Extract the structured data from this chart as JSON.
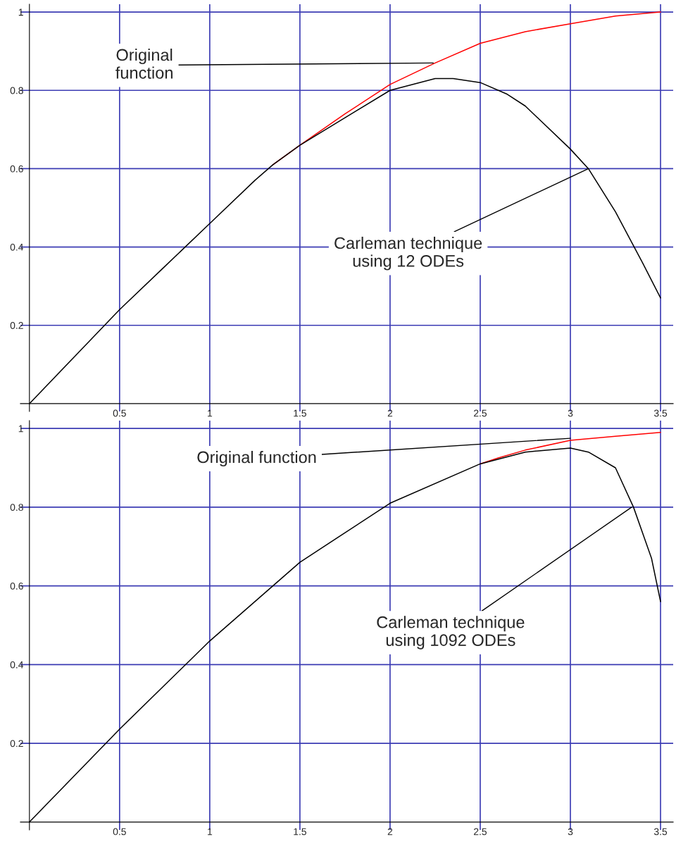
{
  "chart_data": [
    {
      "type": "line",
      "xlim": [
        -0.05,
        3.57
      ],
      "ylim": [
        -0.02,
        1.02
      ],
      "xticks": [
        0.5,
        1,
        1.5,
        2,
        2.5,
        3,
        3.5
      ],
      "yticks": [
        0.2,
        0.4,
        0.6,
        0.8,
        1
      ],
      "grid": true,
      "series": [
        {
          "color": "#ff0000",
          "x": [
            1.35,
            1.5,
            1.75,
            2,
            2.25,
            2.5,
            2.75,
            3,
            3.25,
            3.5
          ],
          "values": [
            0.61,
            0.66,
            0.74,
            0.815,
            0.87,
            0.92,
            0.95,
            0.97,
            0.99,
            1.0
          ]
        },
        {
          "color": "#000000",
          "x": [
            0,
            0.25,
            0.5,
            0.75,
            1,
            1.25,
            1.35,
            1.5,
            1.75,
            2,
            2.25,
            2.35,
            2.5,
            2.65,
            2.75,
            3,
            3.1,
            3.25,
            3.4,
            3.5
          ],
          "values": [
            0,
            0.12,
            0.24,
            0.35,
            0.46,
            0.57,
            0.61,
            0.66,
            0.73,
            0.8,
            0.83,
            0.83,
            0.82,
            0.79,
            0.76,
            0.65,
            0.6,
            0.49,
            0.36,
            0.27
          ]
        }
      ],
      "annotations": [
        {
          "text": "Original\nfunction",
          "x": 2.24,
          "y": 0.87
        },
        {
          "text": "Carleman technique\nusing 12 ODEs",
          "x": 3.1,
          "y": 0.6
        }
      ]
    },
    {
      "type": "line",
      "xlim": [
        -0.05,
        3.57
      ],
      "ylim": [
        -0.02,
        1.02
      ],
      "xticks": [
        0.5,
        1,
        1.5,
        2,
        2.5,
        3,
        3.5
      ],
      "yticks": [
        0.2,
        0.4,
        0.6,
        0.8,
        1
      ],
      "grid": true,
      "series": [
        {
          "color": "#ff0000",
          "x": [
            2.5,
            2.6,
            2.75,
            3,
            3.25,
            3.5
          ],
          "values": [
            0.91,
            0.925,
            0.945,
            0.97,
            0.98,
            0.99
          ]
        },
        {
          "color": "#000000",
          "x": [
            0,
            0.5,
            1,
            1.5,
            2,
            2.5,
            2.75,
            3,
            3.1,
            3.25,
            3.35,
            3.45,
            3.5
          ],
          "values": [
            0,
            0.236,
            0.46,
            0.66,
            0.81,
            0.91,
            0.94,
            0.95,
            0.94,
            0.9,
            0.8,
            0.67,
            0.56
          ]
        }
      ],
      "annotations": [
        {
          "text": "Original function",
          "x": 3.0,
          "y": 0.975
        },
        {
          "text": "Carleman technique\nusing 1092 ODEs",
          "x": 3.34,
          "y": 0.8
        }
      ]
    }
  ]
}
